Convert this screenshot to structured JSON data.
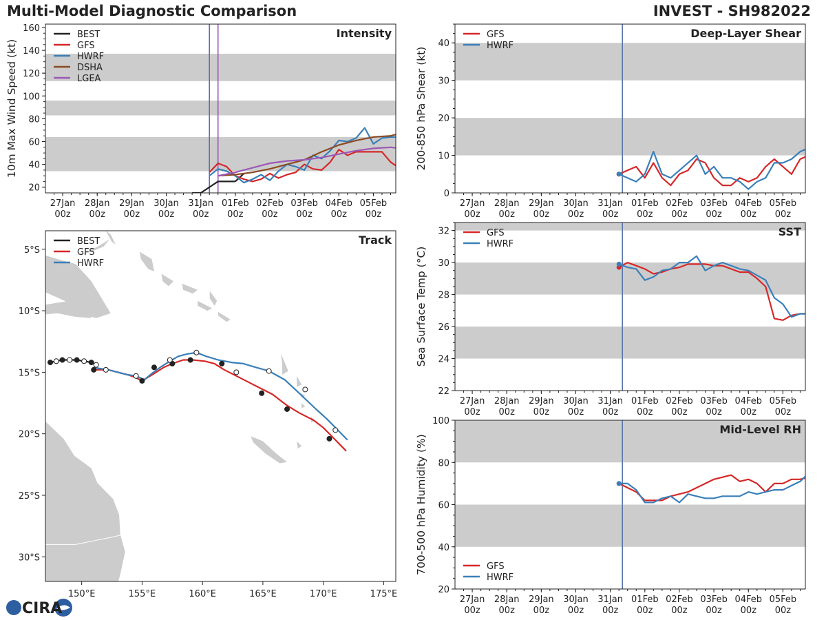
{
  "header": {
    "title": "Multi-Model Diagnostic Comparison",
    "storm": "INVEST - SH982022"
  },
  "logo": {
    "text": "CIRA"
  },
  "time_axis": {
    "labels": [
      "27Jan\n00z",
      "28Jan\n00z",
      "29Jan\n00z",
      "30Jan\n00z",
      "31Jan\n00z",
      "01Feb\n00z",
      "02Feb\n00z",
      "03Feb\n00z",
      "04Feb\n00z",
      "05Feb\n00z"
    ],
    "range": [
      -0.5,
      9.65
    ],
    "analysis_time": 4.35
  },
  "colors": {
    "BEST": "#222222",
    "GFS": "#d62728",
    "HWRF": "#3a7fb8",
    "DSHA": "#8b4a22",
    "LGEA": "#9b59b6",
    "band": "#cccccc",
    "vline": "#5a74a8",
    "land": "#cccccc"
  },
  "chart_data": [
    {
      "id": "intensity",
      "type": "line",
      "title": "Intensity",
      "ylabel": "10m Max Wind Speed (kt)",
      "ylim": [
        15,
        163
      ],
      "yticks": [
        20,
        40,
        60,
        80,
        100,
        120,
        140,
        160
      ],
      "bands": [
        [
          34,
          64
        ],
        [
          83,
          96
        ],
        [
          113,
          137
        ]
      ],
      "vlines": [
        4.25,
        4.5
      ],
      "legend": "top-left",
      "series": [
        {
          "name": "BEST",
          "x": [
            3.75,
            4.0,
            4.5,
            5.0
          ],
          "y": [
            15,
            15,
            25,
            25
          ]
        },
        {
          "name": "BEST",
          "x": [
            5.0,
            5.25
          ],
          "y": [
            25,
            32
          ]
        },
        {
          "name": "GFS",
          "x": [
            4.25,
            4.5,
            4.75,
            5.0,
            5.25,
            5.5,
            5.75,
            6.0,
            6.25,
            6.5,
            6.75,
            7.0,
            7.25,
            7.5,
            7.75,
            8.0,
            8.25,
            8.5,
            8.75,
            9.0,
            9.25,
            9.5,
            9.75
          ],
          "y": [
            33,
            41,
            38,
            30,
            27,
            25,
            27,
            32,
            28,
            31,
            33,
            40,
            36,
            35,
            42,
            53,
            48,
            51,
            51,
            51,
            51,
            42,
            37
          ]
        },
        {
          "name": "HWRF",
          "x": [
            4.25,
            4.5,
            4.75,
            5.0,
            5.25,
            5.5,
            5.75,
            6.0,
            6.25,
            6.5,
            6.75,
            7.0,
            7.25,
            7.5,
            7.75,
            8.0,
            8.25,
            8.5,
            8.75,
            9.0,
            9.25,
            9.5,
            9.75
          ],
          "y": [
            30,
            36,
            34,
            30,
            24,
            27,
            31,
            26,
            34,
            40,
            38,
            35,
            48,
            45,
            52,
            61,
            60,
            63,
            72,
            58,
            63,
            64,
            64
          ]
        },
        {
          "name": "DSHA",
          "x": [
            4.5,
            5.0,
            5.5,
            6.0,
            6.5,
            7.0,
            7.5,
            8.0,
            8.5,
            9.0,
            9.5,
            9.75
          ],
          "y": [
            30,
            31,
            33,
            36,
            40,
            44,
            51,
            57,
            61,
            64,
            65,
            67
          ]
        },
        {
          "name": "LGEA",
          "x": [
            4.5,
            5.0,
            5.5,
            6.0,
            6.5,
            7.0,
            7.5,
            8.0,
            8.5,
            9.0,
            9.5,
            9.75
          ],
          "y": [
            30,
            33,
            37,
            41,
            43,
            44,
            46,
            49,
            52,
            54,
            55,
            54
          ]
        }
      ]
    },
    {
      "id": "shear",
      "type": "line",
      "title": "Deep-Layer Shear",
      "ylabel": "200-850 hPa Shear (kt)",
      "ylim": [
        0,
        45
      ],
      "yticks": [
        0,
        10,
        20,
        30,
        40
      ],
      "bands": [
        [
          10,
          20
        ],
        [
          30,
          40
        ]
      ],
      "vlines": [
        4.35
      ],
      "legend": "top-left",
      "series": [
        {
          "name": "GFS",
          "x": [
            4.25,
            4.5,
            4.75,
            5.0,
            5.25,
            5.5,
            5.75,
            6.0,
            6.25,
            6.5,
            6.75,
            7.0,
            7.25,
            7.5,
            7.75,
            8.0,
            8.25,
            8.5,
            8.75,
            9.0,
            9.25,
            9.5,
            9.75
          ],
          "y": [
            5,
            6,
            7,
            4,
            8,
            4,
            2,
            5,
            6,
            9,
            8,
            4,
            2,
            2,
            4,
            3,
            4,
            7,
            9,
            7,
            5,
            9,
            10
          ]
        },
        {
          "name": "HWRF",
          "x": [
            4.25,
            4.5,
            4.75,
            5.0,
            5.25,
            5.5,
            5.75,
            6.0,
            6.25,
            6.5,
            6.75,
            7.0,
            7.25,
            7.5,
            7.75,
            8.0,
            8.25,
            8.5,
            8.75,
            9.0,
            9.25,
            9.5,
            9.75
          ],
          "y": [
            5,
            4,
            3,
            5,
            11,
            5,
            4,
            6,
            8,
            10,
            5,
            7,
            4,
            4,
            3,
            1,
            3,
            4,
            8,
            8,
            9,
            11,
            12
          ]
        }
      ]
    },
    {
      "id": "sst",
      "type": "line",
      "title": "SST",
      "ylabel": "Sea Surface Temp (°C)",
      "ylim": [
        22,
        32.5
      ],
      "yticks": [
        22,
        24,
        26,
        28,
        30,
        32
      ],
      "bands": [
        [
          24,
          26
        ],
        [
          28,
          30
        ],
        [
          32,
          34
        ]
      ],
      "vlines": [
        4.35
      ],
      "legend": "top-left",
      "series": [
        {
          "name": "GFS",
          "x": [
            4.25,
            4.5,
            4.75,
            5.0,
            5.25,
            5.5,
            5.75,
            6.0,
            6.25,
            6.5,
            6.75,
            7.0,
            7.25,
            7.5,
            7.75,
            8.0,
            8.25,
            8.5,
            8.75,
            9.0,
            9.25,
            9.5,
            9.75
          ],
          "y": [
            29.7,
            30.0,
            29.8,
            29.6,
            29.3,
            29.4,
            29.6,
            29.7,
            29.9,
            29.9,
            29.9,
            29.8,
            29.8,
            29.6,
            29.4,
            29.4,
            29.0,
            28.5,
            26.5,
            26.4,
            26.7,
            26.8,
            26.8
          ]
        },
        {
          "name": "HWRF",
          "x": [
            4.25,
            4.5,
            4.75,
            5.0,
            5.25,
            5.5,
            5.75,
            6.0,
            6.25,
            6.5,
            6.75,
            7.0,
            7.25,
            7.5,
            7.75,
            8.0,
            8.25,
            8.5,
            8.75,
            9.0,
            9.25,
            9.5,
            9.75
          ],
          "y": [
            29.9,
            29.7,
            29.6,
            28.9,
            29.1,
            29.5,
            29.6,
            30.0,
            30.0,
            30.4,
            29.5,
            29.8,
            30.0,
            29.8,
            29.6,
            29.5,
            29.2,
            28.9,
            27.8,
            27.4,
            26.6,
            26.8,
            26.8
          ]
        }
      ]
    },
    {
      "id": "rh",
      "type": "line",
      "title": "Mid-Level RH",
      "ylabel": "700-500 hPa Humidity (%)",
      "ylim": [
        20,
        100
      ],
      "yticks": [
        20,
        40,
        60,
        80,
        100
      ],
      "bands": [
        [
          40,
          60
        ],
        [
          80,
          100
        ]
      ],
      "vlines": [
        4.35
      ],
      "legend": "bottom-left",
      "series": [
        {
          "name": "GFS",
          "x": [
            4.25,
            4.5,
            4.75,
            5.0,
            5.25,
            5.5,
            5.75,
            6.0,
            6.25,
            6.5,
            6.75,
            7.0,
            7.25,
            7.5,
            7.75,
            8.0,
            8.25,
            8.5,
            8.75,
            9.0,
            9.25,
            9.5,
            9.75
          ],
          "y": [
            70,
            68,
            66,
            62,
            62,
            62,
            64,
            65,
            66,
            68,
            70,
            72,
            73,
            74,
            71,
            72,
            70,
            66,
            70,
            70,
            72,
            72,
            73
          ]
        },
        {
          "name": "HWRF",
          "x": [
            4.25,
            4.5,
            4.75,
            5.0,
            5.25,
            5.5,
            5.75,
            6.0,
            6.25,
            6.5,
            6.75,
            7.0,
            7.25,
            7.5,
            7.75,
            8.0,
            8.25,
            8.5,
            8.75,
            9.0,
            9.25,
            9.5,
            9.75
          ],
          "y": [
            70,
            70,
            67,
            61,
            61,
            63,
            64,
            61,
            65,
            64,
            63,
            63,
            64,
            64,
            64,
            66,
            65,
            66,
            67,
            67,
            69,
            71,
            75
          ]
        }
      ]
    },
    {
      "id": "track",
      "type": "scatter",
      "title": "Track",
      "xlim": [
        147,
        176
      ],
      "ylim": [
        -32,
        -3.5
      ],
      "xticks": [
        150,
        155,
        160,
        165,
        170,
        175
      ],
      "xtick_labels": [
        "150°E",
        "155°E",
        "160°E",
        "165°E",
        "170°E",
        "175°E"
      ],
      "yticks": [
        -5,
        -10,
        -15,
        -20,
        -25,
        -30
      ],
      "ytick_labels": [
        "5°S",
        "10°S",
        "15°S",
        "20°S",
        "25°S",
        "30°S"
      ],
      "legend": "top-left",
      "series": [
        {
          "name": "BEST",
          "lon": [
            147.4,
            147.9,
            148.4,
            149.0,
            149.6,
            150.2,
            150.8,
            151.2
          ],
          "lat": [
            -14.2,
            -14.1,
            -14.0,
            -14.0,
            -14.0,
            -14.1,
            -14.2,
            -14.4
          ]
        },
        {
          "name": "GFS",
          "lon": [
            151.0,
            151.5,
            152.2,
            153.0,
            153.8,
            154.4,
            155.0,
            155.5,
            156.0,
            156.8,
            157.5,
            158.4,
            159.2,
            160.2,
            161.0,
            161.8,
            162.8,
            163.8,
            164.8,
            165.8,
            167.0,
            168.0,
            169.2,
            170.0,
            170.8,
            171.4,
            171.9
          ],
          "lat": [
            -14.8,
            -14.8,
            -14.8,
            -15.0,
            -15.2,
            -15.4,
            -15.7,
            -15.4,
            -15.1,
            -14.6,
            -14.3,
            -14.0,
            -14.0,
            -14.1,
            -14.3,
            -14.8,
            -15.3,
            -15.8,
            -16.3,
            -16.8,
            -17.7,
            -18.3,
            -18.9,
            -19.5,
            -20.3,
            -20.9,
            -21.4
          ]
        },
        {
          "name": "HWRF",
          "lon": [
            151.0,
            151.5,
            152.2,
            153.0,
            153.8,
            154.5,
            155.2,
            155.8,
            156.5,
            157.3,
            158.0,
            158.8,
            159.5,
            160.3,
            161.3,
            162.4,
            163.4,
            164.4,
            165.5,
            166.8,
            168.0,
            169.4,
            170.3,
            171.1,
            171.6,
            172.0
          ],
          "lat": [
            -14.6,
            -14.7,
            -14.8,
            -15.0,
            -15.2,
            -15.3,
            -15.6,
            -15.1,
            -14.6,
            -14.1,
            -13.7,
            -13.5,
            -13.4,
            -13.7,
            -14.0,
            -14.2,
            -14.3,
            -14.6,
            -14.9,
            -15.6,
            -16.7,
            -18.0,
            -18.8,
            -19.6,
            -20.1,
            -20.5
          ]
        },
        {
          "name": "GFS",
          "lon": [
            151.0,
            155.0,
            156.0,
            157.5,
            159.0,
            161.6,
            164.9,
            167.0,
            170.5
          ],
          "lat": [
            -14.8,
            -15.7,
            -14.6,
            -14.3,
            -14.0,
            -14.3,
            -16.7,
            -18.0,
            -20.4
          ],
          "marker": "filled"
        },
        {
          "name": "HWRF",
          "lon": [
            152.0,
            154.5,
            157.3,
            159.5,
            162.8,
            165.5,
            168.5,
            171.0
          ],
          "lat": [
            -14.8,
            -15.3,
            -14.0,
            -13.4,
            -15.0,
            -14.9,
            -16.4,
            -19.7
          ],
          "marker": "open"
        }
      ]
    }
  ]
}
